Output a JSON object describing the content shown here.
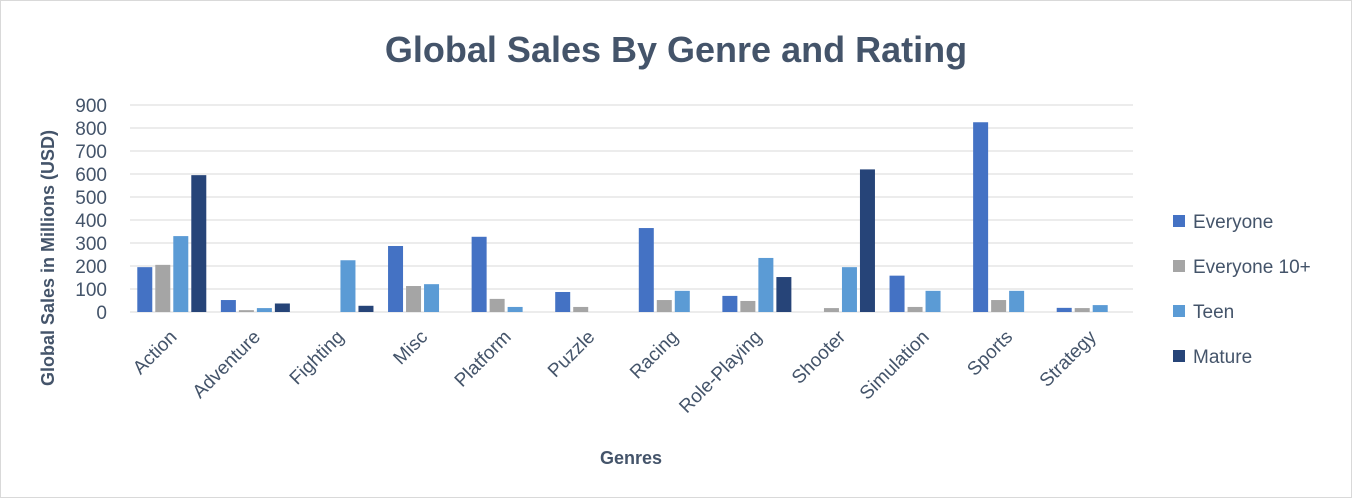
{
  "chart_data": {
    "type": "bar",
    "title": "Global Sales By Genre and Rating",
    "xlabel": "Genres",
    "ylabel": "Global Sales in Millions (USD)",
    "ylim": [
      0,
      900
    ],
    "yticks": [
      0,
      100,
      200,
      300,
      400,
      500,
      600,
      700,
      800,
      900
    ],
    "grid": true,
    "legend_position": "right",
    "categories": [
      "Action",
      "Adventure",
      "Fighting",
      "Misc",
      "Platform",
      "Puzzle",
      "Racing",
      "Role-Playing",
      "Shooter",
      "Simulation",
      "Sports",
      "Strategy"
    ],
    "series": [
      {
        "name": "Everyone",
        "color": "#4472c4",
        "values": [
          195,
          52,
          0,
          287,
          327,
          87,
          365,
          70,
          0,
          158,
          825,
          18
        ]
      },
      {
        "name": "Everyone 10+",
        "color": "#a5a5a5",
        "values": [
          205,
          8,
          0,
          113,
          57,
          22,
          52,
          48,
          17,
          22,
          52,
          17
        ]
      },
      {
        "name": "Teen",
        "color": "#5b9bd5",
        "values": [
          330,
          17,
          225,
          121,
          22,
          0,
          92,
          235,
          195,
          92,
          92,
          30
        ]
      },
      {
        "name": "Mature",
        "color": "#264478",
        "values": [
          595,
          37,
          27,
          0,
          0,
          0,
          0,
          152,
          620,
          0,
          0,
          0
        ]
      }
    ]
  }
}
